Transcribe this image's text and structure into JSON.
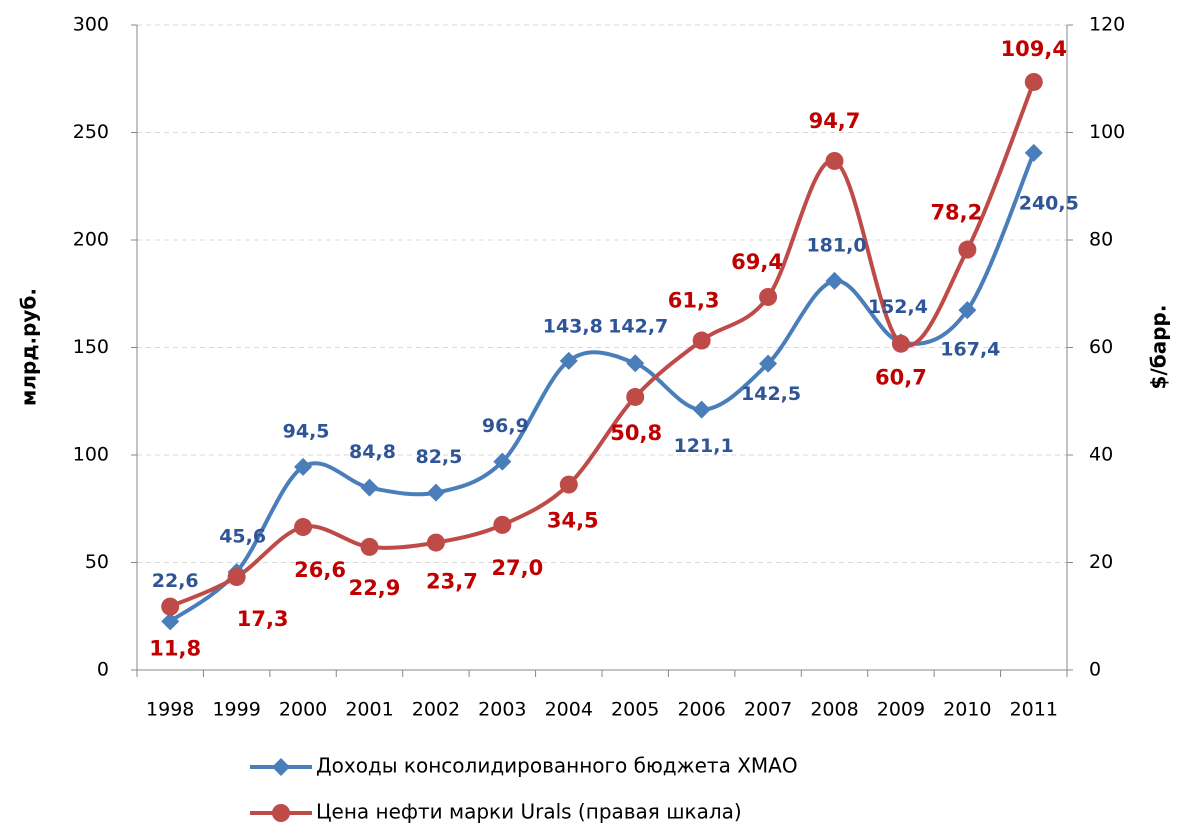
{
  "chart_data": {
    "type": "line",
    "categories": [
      "1998",
      "1999",
      "2000",
      "2001",
      "2002",
      "2003",
      "2004",
      "2005",
      "2006",
      "2007",
      "2008",
      "2009",
      "2010",
      "2011"
    ],
    "y_label": "млрд.руб.",
    "y2_label": "$/барр.",
    "ylim": [
      0,
      300
    ],
    "yticks": [
      0,
      50,
      100,
      150,
      200,
      250,
      300
    ],
    "y2lim": [
      0,
      120
    ],
    "y2ticks": [
      0,
      20,
      40,
      60,
      80,
      100,
      120
    ],
    "grid": true,
    "smooth": true,
    "legend": "bottom",
    "series": [
      {
        "name": "Доходы консолидированного бюджета ХМАО",
        "color": "#4a7ebb",
        "marker": "diamond",
        "axis": "y",
        "values": [
          22.6,
          45.6,
          94.5,
          84.8,
          82.5,
          96.9,
          143.8,
          142.7,
          121.1,
          142.5,
          181.0,
          152.4,
          167.4,
          240.5
        ],
        "value_labels": [
          "22,6",
          "45,6",
          "94,5",
          "84,8",
          "82,5",
          "96,9",
          "143,8",
          "142,7",
          "121,1",
          "142,5",
          "181,0",
          "152,4",
          "167,4",
          "240,5"
        ]
      },
      {
        "name": "Цена нефти марки Urals (правая шкала)",
        "color": "#be4b48",
        "marker": "circle",
        "axis": "y2",
        "values": [
          11.8,
          17.3,
          26.6,
          22.9,
          23.7,
          27.0,
          34.5,
          50.8,
          61.3,
          69.4,
          94.7,
          60.7,
          78.2,
          109.4
        ],
        "value_labels": [
          "11,8",
          "17,3",
          "26,6",
          "22,9",
          "23,7",
          "27,0",
          "34,5",
          "50,8",
          "61,3",
          "69,4",
          "94,7",
          "60,7",
          "78,2",
          "109,4"
        ]
      }
    ]
  }
}
